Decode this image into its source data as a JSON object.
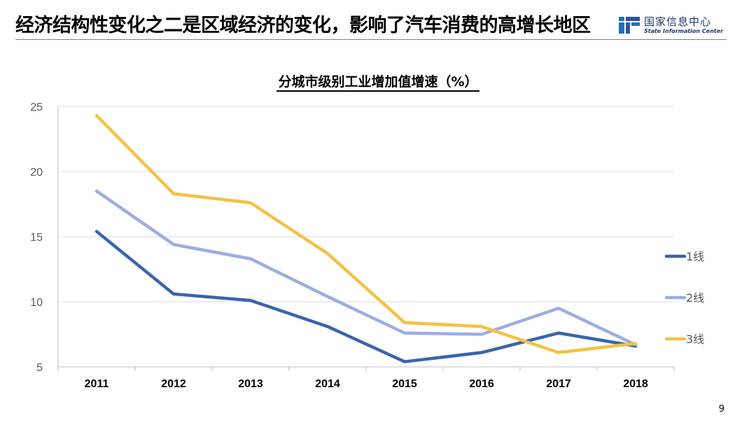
{
  "slide": {
    "title": "经济结构性变化之二是区域经济的变化，影响了汽车消费的高增长地区",
    "page_number": "9"
  },
  "logo": {
    "name_cn": "国家信息中心",
    "name_en": "State Information Center",
    "colors": [
      "#1f6fbf",
      "#2f5597"
    ]
  },
  "chart_data": {
    "type": "line",
    "title": "分城市级别工业增加值增速（%）",
    "categories": [
      "2011",
      "2012",
      "2013",
      "2014",
      "2015",
      "2016",
      "2017",
      "2018"
    ],
    "series": [
      {
        "name": "1线",
        "color": "#3a64ad",
        "values": [
          15.4,
          10.6,
          10.1,
          8.1,
          5.4,
          6.1,
          7.6,
          6.6
        ]
      },
      {
        "name": "2线",
        "color": "#9aaee0",
        "values": [
          18.5,
          14.4,
          13.3,
          10.4,
          7.6,
          7.5,
          9.5,
          6.7
        ]
      },
      {
        "name": "3线",
        "color": "#f5c142",
        "values": [
          24.3,
          18.3,
          17.6,
          13.7,
          8.4,
          8.1,
          6.1,
          6.8
        ]
      }
    ],
    "ylim": [
      5,
      25
    ],
    "yticks": [
      5,
      10,
      15,
      20,
      25
    ],
    "grid": true,
    "legend_position": "right"
  }
}
